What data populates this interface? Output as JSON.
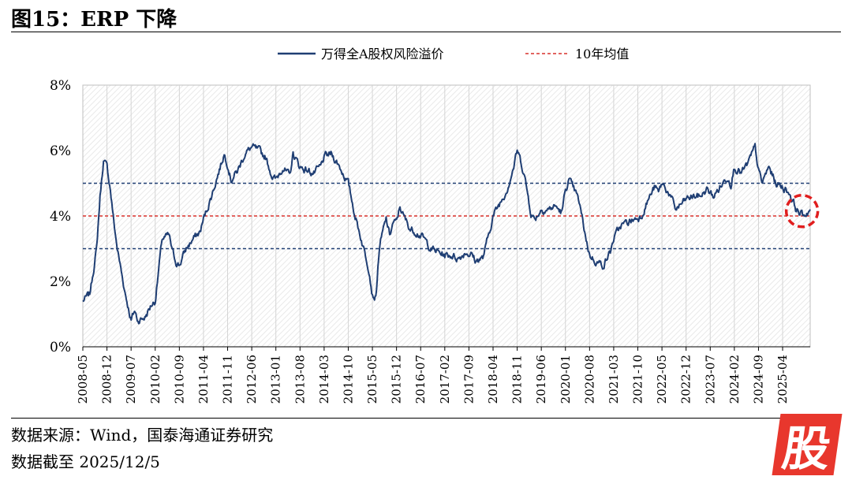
{
  "header": {
    "title": "图15：ERP 下降"
  },
  "footer": {
    "source": "数据来源：Wind，国泰海通证券研究",
    "date": "数据截至 2025/12/5"
  },
  "watermark": {
    "glyph": "股"
  },
  "colors": {
    "series": "#1f3e73",
    "avg": "#d9312b",
    "band": "#1f3e73",
    "highlight": "#e01e1e"
  },
  "chart_data": {
    "type": "line",
    "title": "",
    "xlabel": "",
    "ylabel": "",
    "ylim": [
      0,
      8
    ],
    "yticks": [
      "0%",
      "2%",
      "4%",
      "6%",
      "8%"
    ],
    "xticks": [
      "2008-05",
      "2008-12",
      "2009-07",
      "2010-02",
      "2010-09",
      "2011-04",
      "2011-11",
      "2012-06",
      "2013-01",
      "2013-08",
      "2014-03",
      "2014-10",
      "2015-05",
      "2015-12",
      "2016-07",
      "2017-02",
      "2017-09",
      "2018-04",
      "2018-11",
      "2019-06",
      "2020-01",
      "2020-08",
      "2021-03",
      "2021-10",
      "2022-05",
      "2022-12",
      "2023-07",
      "2024-02",
      "2024-09",
      "2025-04"
    ],
    "legend_position": "top",
    "series": [
      {
        "name": "万得全A股权风险溢价",
        "style": "solid",
        "x": [
          "2008-05",
          "2008-07",
          "2008-09",
          "2008-10",
          "2008-11",
          "2008-12",
          "2009-01",
          "2009-02",
          "2009-03",
          "2009-05",
          "2009-07",
          "2009-08",
          "2009-09",
          "2009-11",
          "2010-01",
          "2010-02",
          "2010-04",
          "2010-06",
          "2010-07",
          "2010-08",
          "2010-09",
          "2010-11",
          "2011-01",
          "2011-03",
          "2011-04",
          "2011-06",
          "2011-08",
          "2011-10",
          "2011-11",
          "2011-12",
          "2012-02",
          "2012-04",
          "2012-06",
          "2012-08",
          "2012-10",
          "2012-12",
          "2013-01",
          "2013-03",
          "2013-05",
          "2013-06",
          "2013-08",
          "2013-10",
          "2013-12",
          "2014-02",
          "2014-03",
          "2014-05",
          "2014-07",
          "2014-09",
          "2014-10",
          "2014-12",
          "2015-02",
          "2015-04",
          "2015-05",
          "2015-06",
          "2015-07",
          "2015-08",
          "2015-09",
          "2015-10",
          "2015-11",
          "2015-12",
          "2016-01",
          "2016-02",
          "2016-04",
          "2016-06",
          "2016-08",
          "2016-10",
          "2016-12",
          "2017-02",
          "2017-04",
          "2017-06",
          "2017-08",
          "2017-10",
          "2017-11",
          "2017-12",
          "2018-01",
          "2018-02",
          "2018-04",
          "2018-06",
          "2018-08",
          "2018-10",
          "2018-11",
          "2018-12",
          "2019-01",
          "2019-03",
          "2019-04",
          "2019-06",
          "2019-08",
          "2019-10",
          "2019-12",
          "2020-01",
          "2020-02",
          "2020-03",
          "2020-04",
          "2020-05",
          "2020-07",
          "2020-08",
          "2020-10",
          "2020-12",
          "2021-02",
          "2021-03",
          "2021-05",
          "2021-07",
          "2021-09",
          "2021-11",
          "2022-01",
          "2022-03",
          "2022-04",
          "2022-05",
          "2022-07",
          "2022-09",
          "2022-10",
          "2022-12",
          "2023-02",
          "2023-04",
          "2023-06",
          "2023-08",
          "2023-10",
          "2023-12",
          "2024-01",
          "2024-02",
          "2024-04",
          "2024-06",
          "2024-08",
          "2024-09",
          "2024-10",
          "2024-12",
          "2025-02",
          "2025-04",
          "2025-06",
          "2025-08",
          "2025-10",
          "2025-12"
        ],
        "values": [
          1.4,
          1.6,
          3.0,
          4.6,
          5.7,
          5.5,
          4.8,
          3.8,
          3.0,
          1.8,
          0.8,
          1.1,
          0.8,
          0.9,
          1.3,
          1.4,
          3.3,
          3.4,
          2.9,
          2.6,
          2.5,
          3.0,
          3.3,
          3.5,
          3.9,
          4.5,
          5.2,
          5.9,
          5.6,
          5.1,
          5.4,
          5.9,
          6.1,
          6.0,
          5.8,
          5.2,
          5.1,
          5.5,
          5.2,
          5.9,
          5.5,
          5.4,
          5.3,
          5.5,
          5.8,
          5.9,
          5.6,
          5.2,
          5.0,
          4.0,
          3.2,
          2.4,
          1.6,
          1.5,
          3.0,
          3.5,
          3.9,
          3.4,
          3.8,
          3.8,
          4.3,
          4.0,
          3.6,
          3.5,
          3.3,
          3.0,
          2.9,
          2.8,
          2.8,
          2.7,
          2.9,
          2.8,
          2.6,
          2.7,
          2.7,
          3.1,
          4.0,
          4.4,
          4.8,
          5.5,
          6.0,
          5.7,
          5.3,
          4.1,
          3.9,
          4.2,
          4.2,
          4.3,
          4.1,
          4.8,
          5.1,
          4.9,
          4.7,
          4.4,
          3.3,
          2.8,
          2.6,
          2.5,
          2.9,
          3.3,
          3.7,
          3.8,
          3.9,
          4.0,
          4.5,
          4.9,
          4.7,
          5.0,
          4.7,
          4.2,
          4.3,
          4.5,
          4.6,
          4.6,
          4.8,
          4.6,
          4.9,
          5.2,
          5.0,
          5.5,
          5.3,
          5.6,
          6.1,
          5.4,
          5.0,
          5.5,
          5.0,
          4.9,
          4.7,
          4.2,
          4.0,
          4.2
        ]
      },
      {
        "name": "10年均值",
        "style": "dashed",
        "value": 4.0
      },
      {
        "name": "",
        "style": "dashed",
        "value": 5.0
      },
      {
        "name": "",
        "style": "dashed",
        "value": 3.0
      }
    ],
    "annotations": [
      {
        "type": "dashed-circle",
        "x": "2025-11",
        "y": 4.15
      }
    ]
  }
}
